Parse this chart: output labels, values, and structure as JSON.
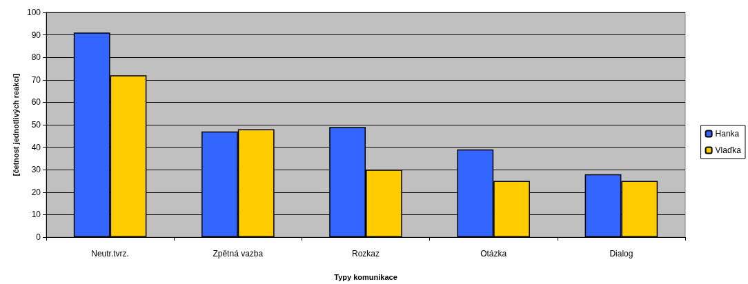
{
  "chart_data": {
    "type": "bar",
    "xlabel": "Typy komunikace",
    "ylabel": "[četnost jednotlivých reakcí]",
    "categories": [
      "Neutr.tvrz.",
      "Zpětná vazba",
      "Rozkaz",
      "Otázka",
      "Dialog"
    ],
    "series": [
      {
        "name": "Hanka",
        "color": "#3366ff",
        "values": [
          91,
          47,
          49,
          39,
          28
        ]
      },
      {
        "name": "Vlaďka",
        "color": "#ffcc00",
        "values": [
          72,
          48,
          30,
          25,
          25
        ]
      }
    ],
    "ylim": [
      0,
      100
    ],
    "yticks": [
      0,
      10,
      20,
      30,
      40,
      50,
      60,
      70,
      80,
      90,
      100
    ],
    "grid": "y",
    "legend": "right"
  }
}
